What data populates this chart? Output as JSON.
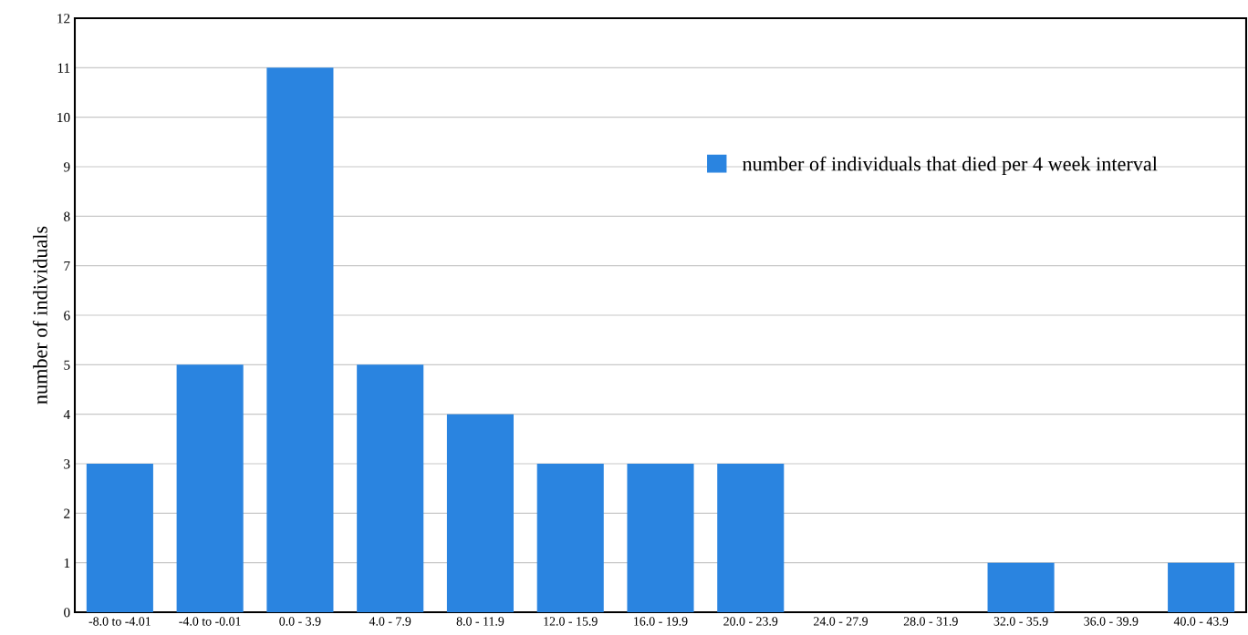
{
  "chart_data": {
    "type": "bar",
    "ylabel": "number of individuals",
    "categories": [
      "-8.0 to -4.01",
      "-4.0 to -0.01",
      "0.0 - 3.9",
      "4.0 - 7.9",
      "8.0 - 11.9",
      "12.0 - 15.9",
      "16.0 - 19.9",
      "20.0 - 23.9",
      "24.0 - 27.9",
      "28.0 - 31.9",
      "32.0 - 35.9",
      "36.0 - 39.9",
      "40.0 - 43.9"
    ],
    "series": [
      {
        "name": "number of individuals that died per 4 week interval",
        "color": "#2a84e0",
        "values": [
          3,
          5,
          11,
          5,
          4,
          3,
          3,
          3,
          0,
          0,
          1,
          0,
          1
        ]
      }
    ],
    "ylim": [
      0,
      12
    ],
    "yticks": [
      0,
      1,
      2,
      3,
      4,
      5,
      6,
      7,
      8,
      9,
      10,
      11,
      12
    ],
    "grid": "y",
    "legend": "top right"
  }
}
